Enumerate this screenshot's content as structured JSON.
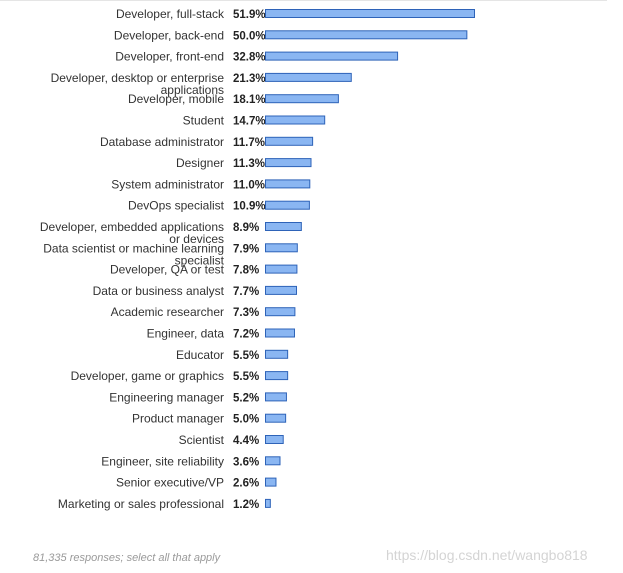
{
  "chart_data": {
    "type": "bar",
    "orientation": "horizontal",
    "categories": [
      [
        "Developer, full-stack"
      ],
      [
        "Developer, back-end"
      ],
      [
        "Developer, front-end"
      ],
      [
        "Developer, desktop or enterprise",
        "applications"
      ],
      [
        "Developer, mobile"
      ],
      [
        "Student"
      ],
      [
        "Database administrator"
      ],
      [
        "Designer"
      ],
      [
        "System administrator"
      ],
      [
        "DevOps specialist"
      ],
      [
        "Developer, embedded applications",
        "or devices"
      ],
      [
        "Data scientist or machine learning",
        "specialist"
      ],
      [
        "Developer, QA or test"
      ],
      [
        "Data or business analyst"
      ],
      [
        "Academic researcher"
      ],
      [
        "Engineer, data"
      ],
      [
        "Educator"
      ],
      [
        "Developer, game or graphics"
      ],
      [
        "Engineering manager"
      ],
      [
        "Product manager"
      ],
      [
        "Scientist"
      ],
      [
        "Engineer, site reliability"
      ],
      [
        "Senior executive/VP"
      ],
      [
        "Marketing or sales professional"
      ]
    ],
    "values": [
      51.9,
      50.0,
      32.8,
      21.3,
      18.1,
      14.7,
      11.7,
      11.3,
      11.0,
      10.9,
      8.9,
      7.9,
      7.8,
      7.7,
      7.3,
      7.2,
      5.5,
      5.5,
      5.2,
      5.0,
      4.4,
      3.6,
      2.6,
      1.2
    ],
    "value_labels": [
      "51.9%",
      "50.0%",
      "32.8%",
      "21.3%",
      "18.1%",
      "14.7%",
      "11.7%",
      "11.3%",
      "11.0%",
      "10.9%",
      "8.9%",
      "7.9%",
      "7.8%",
      "7.7%",
      "7.3%",
      "7.2%",
      "5.5%",
      "5.5%",
      "5.2%",
      "5.0%",
      "4.4%",
      "3.6%",
      "2.6%",
      "1.2%"
    ],
    "unit": "%",
    "xlim": [
      0,
      100
    ],
    "grid": false,
    "title": "",
    "xlabel": "",
    "ylabel": "",
    "bar_color": "#8ab6f2",
    "bar_border_color": "#2e63b8"
  },
  "footnote": "81,335 responses; select all that apply",
  "watermark": "https://blog.csdn.net/wangbo818"
}
